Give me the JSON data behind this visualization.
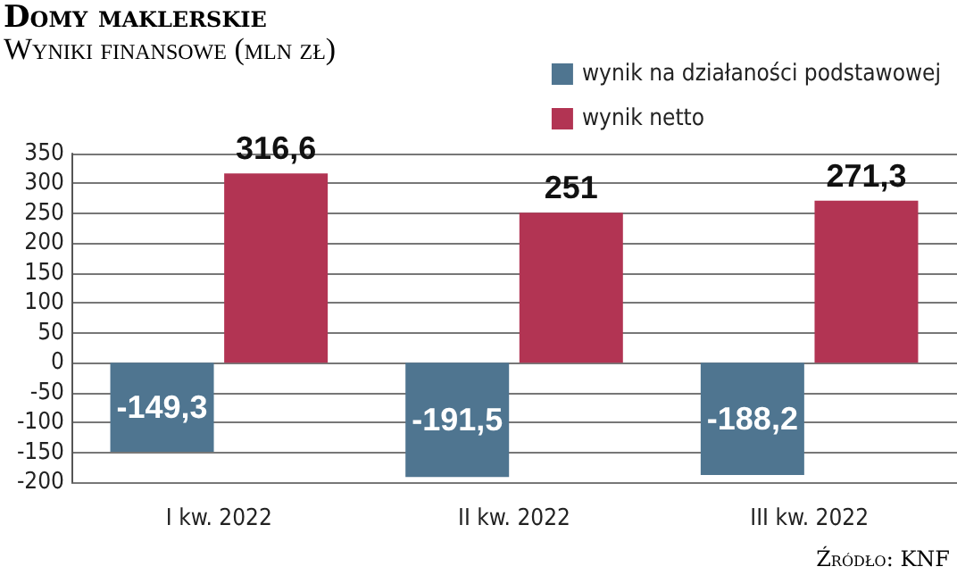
{
  "chart_data": {
    "type": "bar",
    "title": "Domy maklerskie",
    "subtitle": "Wyniki finansowe (mln zł)",
    "annotations": [
      "Źródło: KNF"
    ],
    "categories": [
      "I kw. 2022",
      "II kw. 2022",
      "III kw. 2022"
    ],
    "series": [
      {
        "name": "wynik na działaności podstawowej",
        "color": "#4f7590",
        "values": [
          -149.3,
          -191.5,
          -188.2
        ],
        "value_labels": [
          "-149,3",
          "-191,5",
          "-188,2"
        ]
      },
      {
        "name": "wynik netto",
        "color": "#b23453",
        "values": [
          316.6,
          251,
          271.3
        ],
        "value_labels": [
          "316,6",
          "251",
          "271,3"
        ]
      }
    ],
    "ylim": [
      -200,
      350
    ],
    "yticks": [
      -200,
      -150,
      -100,
      -50,
      0,
      50,
      100,
      150,
      200,
      250,
      300,
      350
    ],
    "grid": "y",
    "legend": "top right"
  }
}
